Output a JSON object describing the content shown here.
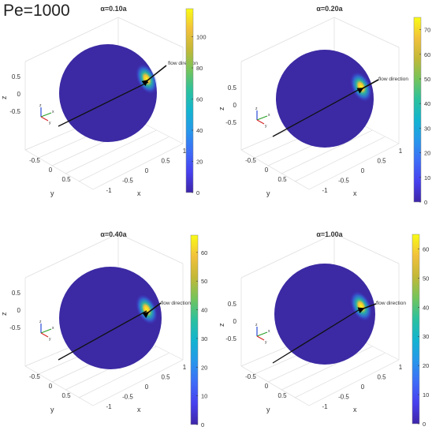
{
  "figure_title": "Pe=1000",
  "colormap": [
    "#3e26a8",
    "#4740ee",
    "#3e6cf7",
    "#2797eb",
    "#13b4d0",
    "#2cc19d",
    "#75c45a",
    "#c3b837",
    "#f2c13b",
    "#f9fb14"
  ],
  "background_color": "#3b2aa3",
  "chart_data": [
    {
      "type": "heatmap",
      "title": "α=0.10a",
      "xlabel": "x",
      "ylabel": "y",
      "zlabel": "z",
      "x_ticks": [
        "-1",
        "-0.5",
        "0",
        "0.5",
        "1"
      ],
      "y_ticks": [
        "-0.5",
        "0",
        "0.5"
      ],
      "z_ticks": [
        "0.5",
        "0",
        "-0.5"
      ],
      "colorbar_ticks": [
        0,
        20,
        40,
        60,
        80,
        100
      ],
      "colorbar_range": [
        0,
        118
      ],
      "annotation": "flow direction",
      "peak_value": 118,
      "inset_axes": [
        "z",
        "x",
        "y"
      ]
    },
    {
      "type": "heatmap",
      "title": "α=0.20a",
      "xlabel": "x",
      "ylabel": "y",
      "zlabel": "z",
      "x_ticks": [
        "-1",
        "-0.5",
        "0",
        "0.5",
        "1"
      ],
      "y_ticks": [
        "-0.5",
        "0",
        "0.5"
      ],
      "z_ticks": [
        "0.5",
        "0",
        "-0.5"
      ],
      "colorbar_ticks": [
        0,
        10,
        20,
        30,
        40,
        50,
        60,
        70
      ],
      "colorbar_range": [
        0,
        75
      ],
      "annotation": "flow direction",
      "peak_value": 75,
      "inset_axes": [
        "z",
        "x",
        "y"
      ]
    },
    {
      "type": "heatmap",
      "title": "α=0.40a",
      "xlabel": "x",
      "ylabel": "y",
      "zlabel": "z",
      "x_ticks": [
        "-1",
        "-0.5",
        "0",
        "0.5",
        "1"
      ],
      "y_ticks": [
        "-0.5",
        "0",
        "0.5"
      ],
      "z_ticks": [
        "0.5",
        "0",
        "-0.5"
      ],
      "colorbar_ticks": [
        0,
        10,
        20,
        30,
        40,
        50,
        60
      ],
      "colorbar_range": [
        0,
        66
      ],
      "annotation": "flow direction",
      "peak_value": 66,
      "inset_axes": [
        "z",
        "x",
        "y"
      ]
    },
    {
      "type": "heatmap",
      "title": "α=1.00a",
      "xlabel": "x",
      "ylabel": "y",
      "zlabel": "z",
      "x_ticks": [
        "-1",
        "-0.5",
        "0",
        "0.5",
        "1"
      ],
      "y_ticks": [
        "-0.5",
        "0",
        "0.5"
      ],
      "z_ticks": [
        "0.5",
        "0",
        "-0.5"
      ],
      "colorbar_ticks": [
        0,
        10,
        20,
        30,
        40,
        50,
        60
      ],
      "colorbar_range": [
        0,
        65
      ],
      "annotation": "flow direction",
      "peak_value": 65,
      "inset_axes": [
        "z",
        "x",
        "y"
      ]
    }
  ]
}
